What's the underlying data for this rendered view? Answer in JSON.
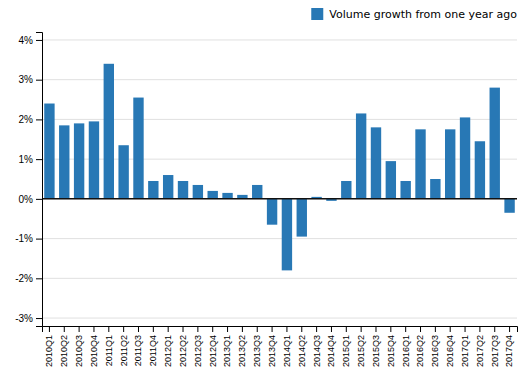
{
  "chart_data": {
    "type": "bar",
    "categories": [
      "2010Q1",
      "2010Q2",
      "2010Q3",
      "2010Q4",
      "2011Q1",
      "2011Q2",
      "2011Q3",
      "2011Q4",
      "2012Q1",
      "2012Q2",
      "2012Q3",
      "2012Q4",
      "2013Q1",
      "2013Q2",
      "2013Q3",
      "2013Q4",
      "2014Q1",
      "2014Q2",
      "2014Q3",
      "2014Q4",
      "2015Q1",
      "2015Q2",
      "2015Q3",
      "2015Q4",
      "2016Q1",
      "2016Q2",
      "2016Q3",
      "2016Q4",
      "2017Q1",
      "2017Q2",
      "2017Q3",
      "2017Q4"
    ],
    "series": [
      {
        "name": "Volume growth from one year ago",
        "color": "#2878b5",
        "values": [
          2.4,
          1.85,
          1.9,
          1.95,
          3.4,
          1.35,
          2.55,
          0.45,
          0.6,
          0.45,
          0.35,
          0.2,
          0.15,
          0.1,
          0.35,
          -0.65,
          -1.8,
          -0.95,
          0.05,
          -0.05,
          0.45,
          2.15,
          1.8,
          0.95,
          0.45,
          1.75,
          0.5,
          1.75,
          2.05,
          1.45,
          2.8,
          -0.35
        ]
      }
    ],
    "ylim": [
      -3.2,
      4.2
    ],
    "yticks": [
      {
        "value": -3,
        "label": "-3%"
      },
      {
        "value": -2,
        "label": "-2%"
      },
      {
        "value": -1,
        "label": "-1%"
      },
      {
        "value": 0,
        "label": "0%"
      },
      {
        "value": 1,
        "label": "1%"
      },
      {
        "value": 2,
        "label": "2%"
      },
      {
        "value": 3,
        "label": "3%"
      },
      {
        "value": 4,
        "label": "4%"
      }
    ],
    "grid": true,
    "legend": "upper right"
  }
}
